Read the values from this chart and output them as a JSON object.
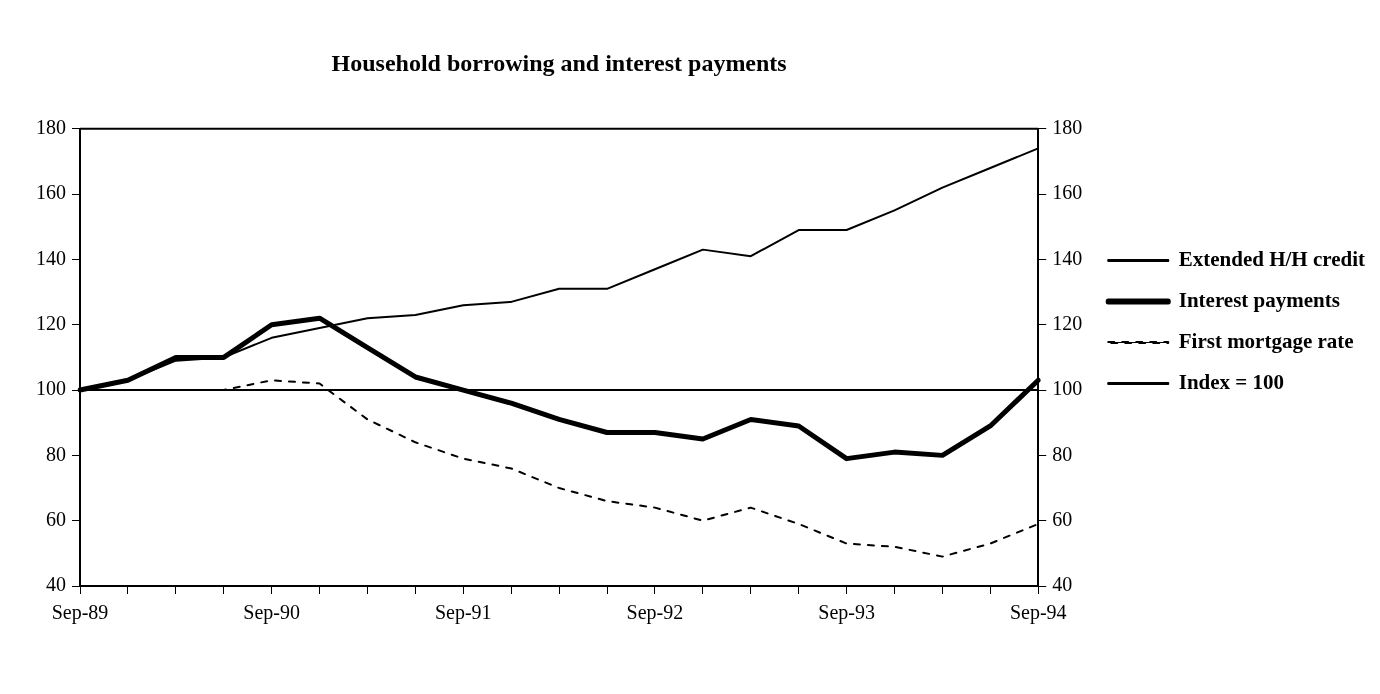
{
  "chart_data": {
    "type": "line",
    "title": "Household borrowing and interest payments",
    "categories": [
      "Sep-89",
      null,
      null,
      null,
      "Sep-90",
      null,
      null,
      null,
      "Sep-91",
      null,
      null,
      null,
      "Sep-92",
      null,
      null,
      null,
      "Sep-93",
      null,
      null,
      null,
      "Sep-94"
    ],
    "series": [
      {
        "name": "Extended H/H credit",
        "color": "#000000",
        "line_style": "solid",
        "values": [
          100,
          103,
          109,
          110,
          116,
          119,
          122,
          123,
          126,
          127,
          131,
          131,
          137,
          143,
          141,
          149,
          149,
          155,
          162,
          168,
          174
        ]
      },
      {
        "name": "Interest payments",
        "color": "#000000",
        "line_style": "solid",
        "values": [
          100,
          103,
          110,
          110,
          120,
          122,
          113,
          104,
          100,
          96,
          91,
          87,
          87,
          85,
          91,
          89,
          79,
          81,
          80,
          89,
          103
        ]
      },
      {
        "name": "First mortgage rate",
        "color": "#000000",
        "line_style": "dashed",
        "values": [
          100,
          100,
          100,
          100,
          103,
          102,
          91,
          84,
          79,
          76,
          70,
          66,
          64,
          60,
          64,
          59,
          53,
          52,
          49,
          53,
          59
        ]
      },
      {
        "name": "Index = 100",
        "color": "#000000",
        "line_style": "solid",
        "values": [
          100,
          100,
          100,
          100,
          100,
          100,
          100,
          100,
          100,
          100,
          100,
          100,
          100,
          100,
          100,
          100,
          100,
          100,
          100,
          100,
          100
        ]
      }
    ],
    "ylim": [
      40,
      180
    ],
    "yticks": [
      40,
      60,
      80,
      100,
      120,
      140,
      160,
      180
    ],
    "y2lim": [
      40,
      180
    ],
    "y2ticks": [
      40,
      60,
      80,
      100,
      120,
      140,
      160,
      180
    ],
    "grid": false,
    "legend": "right",
    "marker": "none"
  }
}
